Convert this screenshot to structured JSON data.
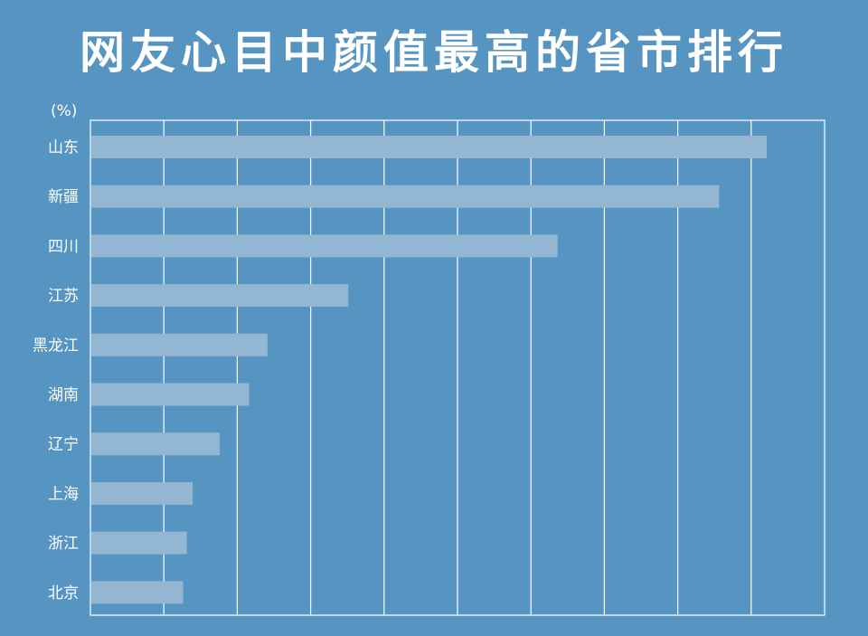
{
  "title": "网友心目中颜值最高的省市排行",
  "chart_data": {
    "type": "bar",
    "orientation": "horizontal",
    "title": "网友心目中颜值最高的省市排行",
    "ylabel": "(%)",
    "categories": [
      "山东",
      "新疆",
      "四川",
      "江苏",
      "黑龙江",
      "湖南",
      "辽宁",
      "上海",
      "浙江",
      "北京"
    ],
    "values": [
      9.2,
      8.55,
      6.35,
      3.5,
      2.4,
      2.15,
      1.75,
      1.38,
      1.3,
      1.25
    ],
    "xlim": [
      0,
      10
    ],
    "grid": true,
    "colors": {
      "background": "#5694c1",
      "bar": "#93b6d2",
      "grid": "#ffffff",
      "text": "#ffffff"
    }
  }
}
